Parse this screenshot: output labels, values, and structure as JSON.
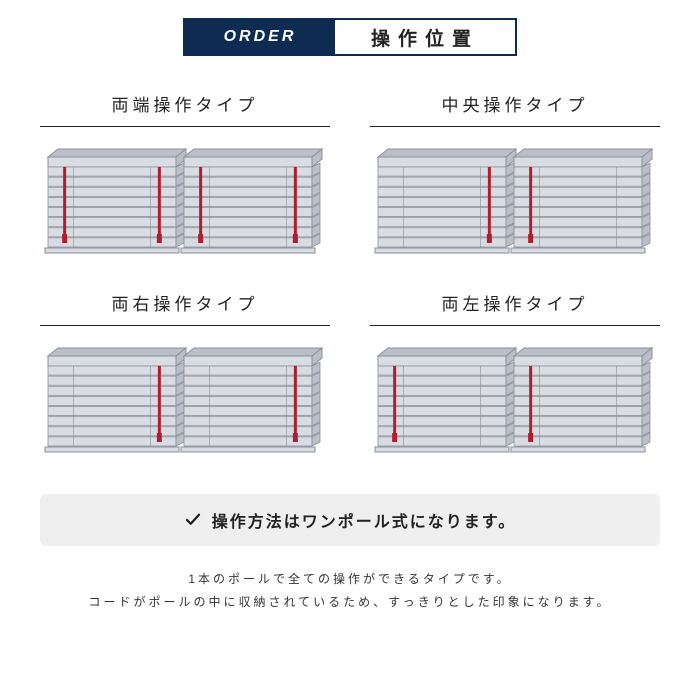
{
  "header": {
    "order_label": "ORDER",
    "title": "操作位置"
  },
  "options": [
    {
      "label": "両端操作タイプ",
      "cords": {
        "left_panel": [
          0.13,
          0.87
        ],
        "right_panel": [
          0.13,
          0.87
        ]
      }
    },
    {
      "label": "中央操作タイプ",
      "cords": {
        "left_panel": [
          0.87
        ],
        "right_panel": [
          0.13
        ]
      }
    },
    {
      "label": "両右操作タイプ",
      "cords": {
        "left_panel": [
          0.87
        ],
        "right_panel": [
          0.87
        ]
      }
    },
    {
      "label": "両左操作タイプ",
      "cords": {
        "left_panel": [
          0.13
        ],
        "right_panel": [
          0.13
        ]
      }
    }
  ],
  "note": {
    "text": "操作方法はワンポール式になります。"
  },
  "description": {
    "line1": "1本のポールで全ての操作ができるタイプです。",
    "line2": "コードがポールの中に収納されているため、すっきりとした印象になります。"
  },
  "style": {
    "colors": {
      "primary": "#0e2b52",
      "cord": "#b01e2e",
      "cord_handle": "#b01e2e",
      "blind_fill": "#d9dde3",
      "blind_stroke": "#8a8f99",
      "blind_dark": "#babfc8",
      "bg": "#ffffff",
      "note_bg": "#efefef",
      "text": "#222222"
    },
    "blind": {
      "slat_count": 8,
      "panel_gap": 8
    }
  }
}
